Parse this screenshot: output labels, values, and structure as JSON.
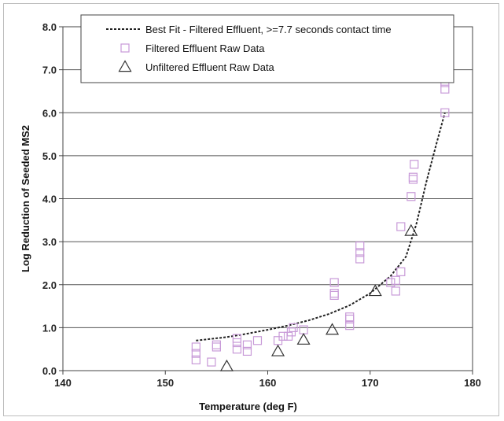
{
  "chart_data": {
    "type": "scatter",
    "xlabel": "Temperature (deg F)",
    "ylabel": "Log Reduction of Seeded MS2",
    "xlim": [
      140,
      180
    ],
    "ylim": [
      0,
      8
    ],
    "xticks": [
      "140",
      "150",
      "160",
      "170",
      "180"
    ],
    "yticks": [
      "0.0",
      "1.0",
      "2.0",
      "3.0",
      "4.0",
      "5.0",
      "6.0",
      "7.0",
      "8.0"
    ],
    "grid": "horizontal",
    "legend_position": "top",
    "series": [
      {
        "name": "Best Fit - Filtered Effluent, >=7.7 seconds contact time",
        "kind": "line",
        "style": "dotted",
        "color": "#222222",
        "points": [
          [
            153,
            0.7
          ],
          [
            156,
            0.78
          ],
          [
            158,
            0.86
          ],
          [
            160,
            0.95
          ],
          [
            162,
            1.05
          ],
          [
            164,
            1.17
          ],
          [
            166,
            1.32
          ],
          [
            168,
            1.52
          ],
          [
            170,
            1.8
          ],
          [
            172,
            2.2
          ],
          [
            173.5,
            2.65
          ],
          [
            174.5,
            3.4
          ],
          [
            175.5,
            4.4
          ],
          [
            176.5,
            5.3
          ],
          [
            177.3,
            6.0
          ]
        ]
      },
      {
        "name": "Filtered Effluent Raw Data",
        "kind": "marker",
        "marker": "square",
        "color": "#c89ad8",
        "points": [
          [
            153,
            0.25
          ],
          [
            153,
            0.4
          ],
          [
            153,
            0.55
          ],
          [
            154.5,
            0.2
          ],
          [
            155,
            0.55
          ],
          [
            155,
            0.6
          ],
          [
            157,
            0.5
          ],
          [
            157,
            0.65
          ],
          [
            157,
            0.75
          ],
          [
            158,
            0.45
          ],
          [
            158,
            0.6
          ],
          [
            159,
            0.7
          ],
          [
            161,
            0.7
          ],
          [
            161.5,
            0.8
          ],
          [
            162,
            0.8
          ],
          [
            162.3,
            0.9
          ],
          [
            162.5,
            1.0
          ],
          [
            163.5,
            0.95
          ],
          [
            166.5,
            1.75
          ],
          [
            166.5,
            2.05
          ],
          [
            166.5,
            1.8
          ],
          [
            168,
            1.05
          ],
          [
            168,
            1.25
          ],
          [
            168,
            1.2
          ],
          [
            169,
            2.6
          ],
          [
            169,
            2.75
          ],
          [
            169,
            2.9
          ],
          [
            172,
            2.05
          ],
          [
            172.5,
            1.85
          ],
          [
            172.5,
            2.1
          ],
          [
            173,
            2.3
          ],
          [
            173,
            3.35
          ],
          [
            174,
            4.05
          ],
          [
            174.2,
            4.45
          ],
          [
            174.2,
            4.5
          ],
          [
            174.3,
            4.8
          ],
          [
            177.3,
            6.0
          ],
          [
            177.3,
            6.55
          ],
          [
            177.3,
            6.7
          ]
        ]
      },
      {
        "name": "Unfiltered Effluent Raw Data",
        "kind": "marker",
        "marker": "triangle",
        "color": "#333333",
        "points": [
          [
            156,
            0.1
          ],
          [
            161,
            0.45
          ],
          [
            163.5,
            0.72
          ],
          [
            166.3,
            0.95
          ],
          [
            170.5,
            1.85
          ],
          [
            174,
            3.25
          ]
        ]
      }
    ]
  }
}
